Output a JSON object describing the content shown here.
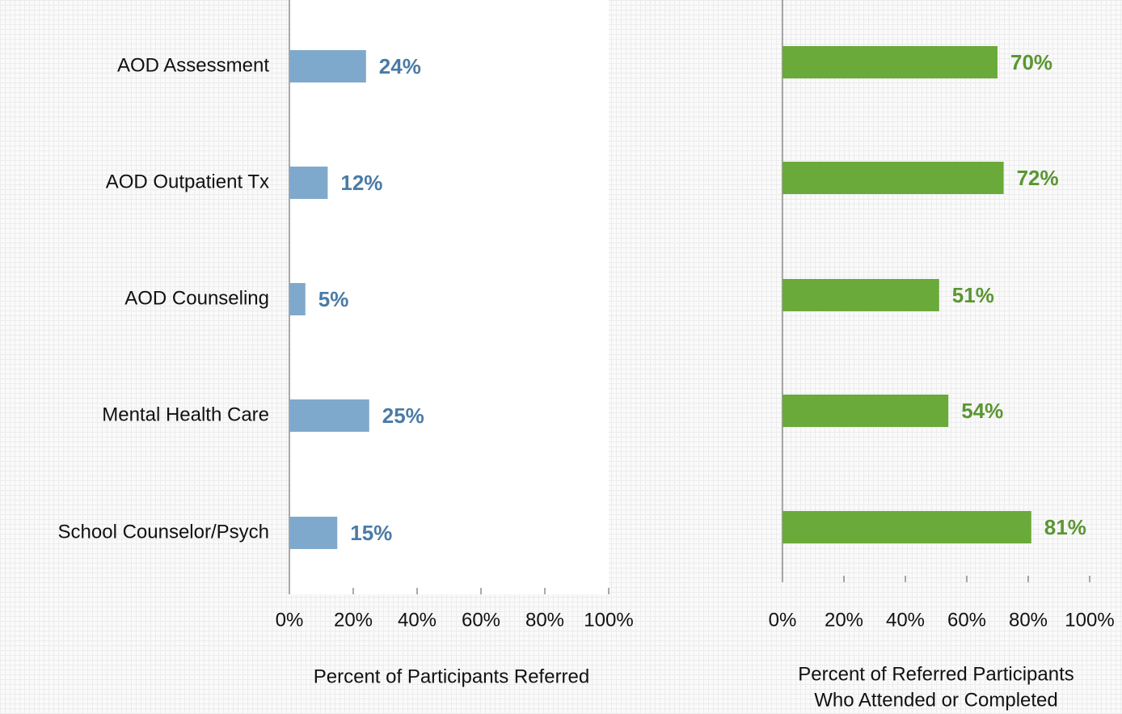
{
  "chart_data": [
    {
      "type": "bar",
      "orientation": "horizontal",
      "categories": [
        "AOD Assessment",
        "AOD Outpatient Tx",
        "AOD Counseling",
        "Mental Health Care",
        "School Counselor/Psych"
      ],
      "values": [
        24,
        12,
        5,
        25,
        15
      ],
      "value_labels": [
        "24%",
        "12%",
        "5%",
        "25%",
        "15%"
      ],
      "color": "#7fa9cc",
      "label_color": "#4a7ba6",
      "xlim": [
        0,
        100
      ],
      "xticks": [
        {
          "value": 0,
          "label": "0%"
        },
        {
          "value": 20,
          "label": "20%"
        },
        {
          "value": 40,
          "label": "40%"
        },
        {
          "value": 60,
          "label": "60%"
        },
        {
          "value": 80,
          "label": "80%"
        },
        {
          "value": 100,
          "label": "100%"
        }
      ],
      "xlabel": [
        "Percent of Participants Referred"
      ]
    },
    {
      "type": "bar",
      "orientation": "horizontal",
      "values": [
        70,
        72,
        51,
        54,
        81
      ],
      "value_labels": [
        "70%",
        "72%",
        "51%",
        "54%",
        "81%"
      ],
      "color": "#6aaa3a",
      "label_color": "#5a9632",
      "xlim": [
        0,
        100
      ],
      "xticks": [
        {
          "value": 0,
          "label": "0%"
        },
        {
          "value": 20,
          "label": "20%"
        },
        {
          "value": 40,
          "label": "40%"
        },
        {
          "value": 60,
          "label": "60%"
        },
        {
          "value": 80,
          "label": "80%"
        },
        {
          "value": 100,
          "label": "100%"
        }
      ],
      "xlabel": [
        "Percent of Referred Participants",
        "Who Attended or Completed"
      ]
    }
  ]
}
